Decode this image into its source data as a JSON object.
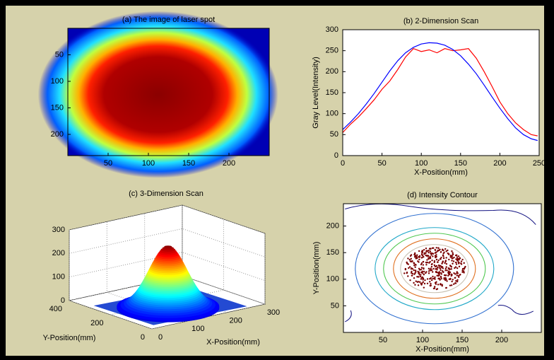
{
  "chart_data": [
    {
      "type": "image",
      "title": "(a)  The image of laser spot",
      "xlim": [
        0,
        250
      ],
      "ylim": [
        0,
        240
      ],
      "y_reversed": true,
      "xticks": [
        50,
        100,
        150,
        200
      ],
      "yticks": [
        50,
        100,
        150,
        200
      ]
    },
    {
      "type": "line",
      "title": "(b)  2-Dimension Scan",
      "xlabel": "X-Position(mm)",
      "ylabel": "Gray Level(Intensity)",
      "xlim": [
        0,
        250
      ],
      "ylim": [
        0,
        300
      ],
      "xticks": [
        0,
        50,
        100,
        150,
        200,
        250
      ],
      "yticks": [
        0,
        50,
        100,
        150,
        200,
        250,
        300
      ],
      "x": [
        0,
        10,
        20,
        30,
        40,
        50,
        60,
        70,
        80,
        90,
        100,
        110,
        120,
        130,
        140,
        150,
        160,
        170,
        180,
        190,
        200,
        210,
        220,
        230,
        240,
        248
      ],
      "series": [
        {
          "color": "#ff0000",
          "values": [
            55,
            75,
            92,
            112,
            133,
            158,
            178,
            205,
            235,
            255,
            248,
            252,
            245,
            255,
            250,
            252,
            255,
            232,
            200,
            165,
            128,
            100,
            78,
            62,
            50,
            47
          ]
        },
        {
          "color": "#0000ff",
          "values": [
            62,
            80,
            100,
            123,
            148,
            175,
            202,
            226,
            245,
            258,
            266,
            269,
            268,
            263,
            253,
            238,
            218,
            195,
            168,
            140,
            113,
            88,
            66,
            50,
            40,
            36
          ]
        }
      ]
    },
    {
      "type": "surface",
      "title": "(c)  3-Dimension Scan",
      "xlabel": "X-Position(mm)",
      "ylabel": "Y-Position(mm)",
      "xlim": [
        0,
        300
      ],
      "ylim": [
        0,
        400
      ],
      "zlim": [
        0,
        300
      ],
      "xticks": [
        0,
        100,
        200,
        300
      ],
      "yticks": [
        0,
        200,
        400
      ],
      "zticks": [
        0,
        100,
        200,
        300
      ]
    },
    {
      "type": "contour",
      "title": "(d) Intensity Contour",
      "xlabel": "X-Position(mm)",
      "ylabel": "Y-Position(mm)",
      "xlim": [
        0,
        250
      ],
      "ylim": [
        0,
        242
      ],
      "xticks": [
        50,
        100,
        150,
        200
      ],
      "yticks": [
        50,
        100,
        150,
        200
      ]
    }
  ]
}
